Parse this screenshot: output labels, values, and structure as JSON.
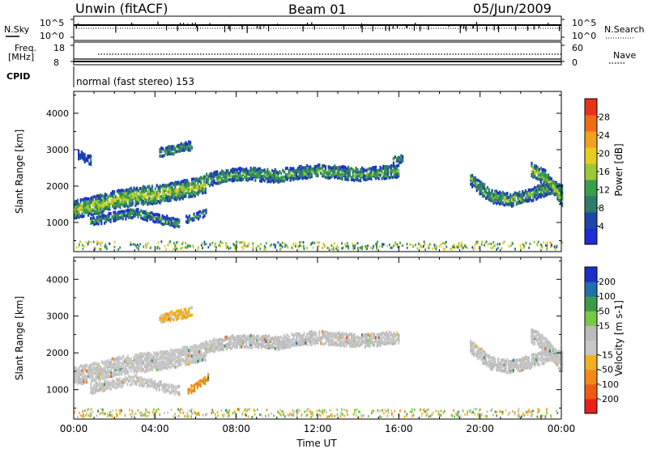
{
  "header": {
    "station": "Unwin (fitACF)",
    "beam": "Beam 01",
    "date": "05/Jun/2009"
  },
  "nsky_panel": {
    "left_label": "N.Sky",
    "left_ticks": [
      "10^5",
      "10^0"
    ],
    "right_ticks": [
      "10^5",
      "10^0"
    ],
    "right_label": "N.Search"
  },
  "freq_panel": {
    "left_label_1": "Freq.",
    "left_label_2": "[MHz]",
    "left_ticks": [
      "18",
      "8"
    ],
    "right_ticks": [
      "60",
      "0"
    ],
    "right_label": "Nave"
  },
  "cpid_panel": {
    "label": "CPID",
    "program": "normal (fast stereo) 153"
  },
  "colors": {
    "power": [
      "#1f2bd6",
      "#1c47a8",
      "#2f7b6a",
      "#3a9e4a",
      "#9dc733",
      "#e8cc1a",
      "#f0a21c",
      "#ef6b14",
      "#e8321a"
    ],
    "velocity": [
      "#e8201a",
      "#ef5a14",
      "#f08a18",
      "#f0b020",
      "#c8c8c8",
      "#bcbcbc",
      "#78c848",
      "#3c9a4a",
      "#1f6fa8",
      "#1c2fc8"
    ],
    "ground_scatter": "#b4b4b4"
  },
  "chart_data": [
    {
      "type": "heatmap",
      "name": "power",
      "ylabel": "Slant Range [km]",
      "y_ticks": [
        1000,
        2000,
        3000,
        4000
      ],
      "ylim": [
        200,
        4600
      ],
      "xlim": [
        0,
        24
      ],
      "colorbar": {
        "label": "Power [dB]",
        "ticks": [
          4,
          8,
          12,
          16,
          20,
          24,
          28
        ],
        "range": [
          0,
          32
        ]
      },
      "bands": [
        {
          "t": [
            0,
            1,
            2,
            3,
            4,
            5,
            6,
            6.5
          ],
          "r": [
            1300,
            1400,
            1550,
            1650,
            1700,
            1800,
            1900,
            2000
          ],
          "width": 500,
          "level": 15
        },
        {
          "t": [
            6.5,
            8,
            9,
            10,
            11,
            12,
            13,
            14,
            15,
            16
          ],
          "r": [
            2100,
            2250,
            2250,
            2200,
            2300,
            2350,
            2300,
            2250,
            2300,
            2350
          ],
          "width": 350,
          "level": 11
        },
        {
          "t": [
            0.8,
            2,
            3,
            4,
            5.2
          ],
          "r": [
            950,
            1100,
            1200,
            1050,
            900
          ],
          "width": 250,
          "level": 10
        },
        {
          "t": [
            19.5,
            20.5,
            21.5,
            22.5,
            23.5,
            24
          ],
          "r": [
            2100,
            1650,
            1550,
            1700,
            1900,
            1800
          ],
          "width": 350,
          "level": 12
        },
        {
          "t": [
            22.5,
            23.2,
            24
          ],
          "r": [
            2400,
            2150,
            1600
          ],
          "width": 400,
          "level": 15
        },
        {
          "t": [
            4.2,
            5.0,
            5.8
          ],
          "r": [
            2850,
            2950,
            3050
          ],
          "width": 250,
          "level": 10
        },
        {
          "t": [
            0.2,
            0.8
          ],
          "r": [
            2800,
            2650
          ],
          "width": 250,
          "level": 7
        },
        {
          "t": [
            5.5,
            6.5
          ],
          "r": [
            1000,
            1200
          ],
          "width": 200,
          "level": 9
        },
        {
          "t": [
            15.7,
            16.2
          ],
          "r": [
            2650,
            2700
          ],
          "width": 200,
          "level": 9
        }
      ]
    },
    {
      "type": "heatmap",
      "name": "velocity",
      "ylabel": "Slant Range [km]",
      "xlabel": "Time UT",
      "y_ticks": [
        1000,
        2000,
        3000,
        4000
      ],
      "ylim": [
        200,
        4600
      ],
      "xlim": [
        0,
        24
      ],
      "x_ticks": [
        "00:00",
        "04:00",
        "08:00",
        "12:00",
        "16:00",
        "20:00",
        "00:00"
      ],
      "colorbar": {
        "label": "Velocity [m s-1]",
        "ticks": [
          -200,
          -100,
          -50,
          -15,
          15,
          50,
          100,
          200
        ],
        "range": [
          -250,
          250
        ]
      },
      "bands": [
        {
          "t": [
            0,
            1,
            2,
            3,
            4,
            5,
            6,
            6.5
          ],
          "r": [
            1300,
            1400,
            1550,
            1650,
            1700,
            1800,
            1900,
            2000
          ],
          "width": 500,
          "level": -5
        },
        {
          "t": [
            6.5,
            8,
            9,
            10,
            11,
            12,
            13,
            14,
            15,
            16
          ],
          "r": [
            2100,
            2250,
            2250,
            2200,
            2300,
            2350,
            2300,
            2250,
            2300,
            2350
          ],
          "width": 350,
          "level": 0
        },
        {
          "t": [
            0.8,
            2,
            3,
            4,
            5.2
          ],
          "r": [
            950,
            1100,
            1200,
            1050,
            900
          ],
          "width": 250,
          "level": -5
        },
        {
          "t": [
            19.5,
            20.5,
            21.5,
            22.5,
            23.5,
            24
          ],
          "r": [
            2100,
            1650,
            1550,
            1700,
            1900,
            1800
          ],
          "width": 350,
          "level": 0
        },
        {
          "t": [
            22.5,
            23.2,
            24
          ],
          "r": [
            2400,
            2150,
            1600
          ],
          "width": 400,
          "level": 0
        },
        {
          "t": [
            4.2,
            5.0,
            5.8
          ],
          "r": [
            2850,
            2950,
            3050
          ],
          "width": 250,
          "level": -20
        },
        {
          "t": [
            5.6,
            6.1,
            6.6
          ],
          "r": [
            900,
            1050,
            1250
          ],
          "width": 200,
          "level": -70
        }
      ]
    }
  ]
}
